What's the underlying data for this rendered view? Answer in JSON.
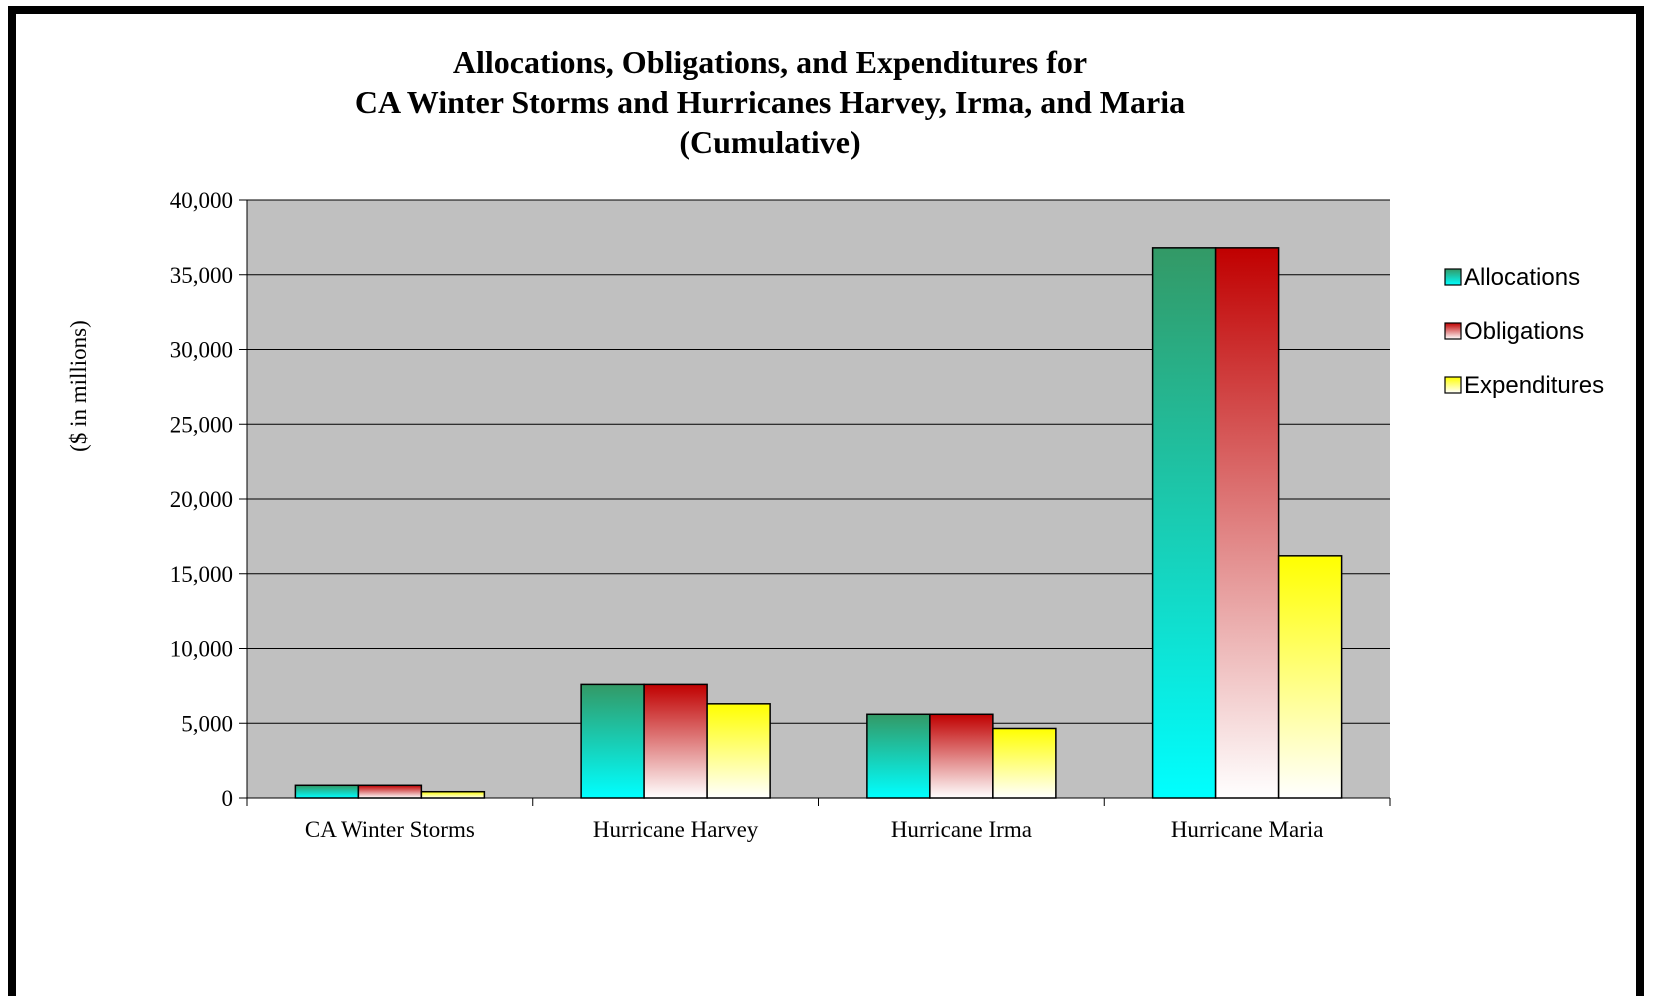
{
  "chart_data": {
    "type": "bar",
    "title_lines": [
      "Allocations, Obligations, and Expenditures for",
      "CA Winter Storms and Hurricanes Harvey, Irma, and Maria",
      "(Cumulative)"
    ],
    "ylabel": "($ in millions)",
    "xlabel": "",
    "categories": [
      "CA Winter Storms",
      "Hurricane Harvey",
      "Hurricane Irma",
      "Hurricane Maria"
    ],
    "series": [
      {
        "name": "Allocations",
        "values": [
          850,
          7600,
          5600,
          36800
        ],
        "color_top": "#339966",
        "color_bottom": "#00ffff"
      },
      {
        "name": "Obligations",
        "values": [
          850,
          7600,
          5600,
          36800
        ],
        "color_top": "#c00000",
        "color_bottom": "#ffffff"
      },
      {
        "name": "Expenditures",
        "values": [
          420,
          6300,
          4650,
          16200
        ],
        "color_top": "#ffff00",
        "color_bottom": "#ffffff"
      }
    ],
    "ylim": [
      0,
      40000
    ],
    "yticks": [
      0,
      5000,
      10000,
      15000,
      20000,
      25000,
      30000,
      35000,
      40000
    ],
    "ytick_labels": [
      "0",
      "5,000",
      "10,000",
      "15,000",
      "20,000",
      "25,000",
      "30,000",
      "35,000",
      "40,000"
    ],
    "plot_background": "#c0c0c0",
    "grid": true,
    "legend_position": "right"
  }
}
